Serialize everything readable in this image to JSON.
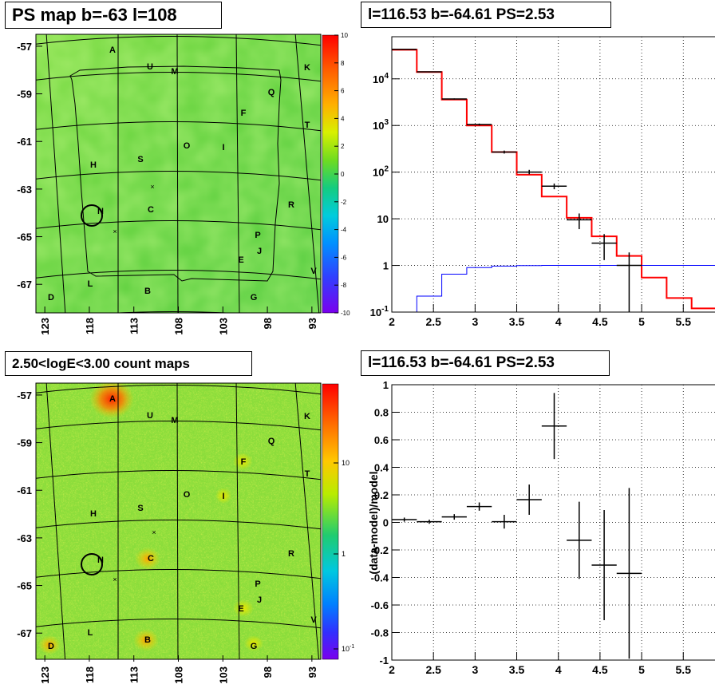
{
  "panels": {
    "ps_map": {
      "title": "PS map b=-63 l=108"
    },
    "spectrum": {
      "title": "l=116.53 b=-64.61 PS=2.53"
    },
    "count_map": {
      "title": "2.50<logE<3.00 count maps"
    },
    "residual": {
      "title": "l=116.53 b=-64.61 PS=2.53"
    }
  },
  "chart_data": [
    {
      "type": "heatmap",
      "name": "ps-map",
      "title": "PS map b=-63 l=108",
      "ylim": [
        -68.2,
        -56.5
      ],
      "xlim": [
        124,
        92
      ],
      "y_ticks": [
        "-57",
        "-59",
        "-61",
        "-63",
        "-65",
        "-67"
      ],
      "x_ticks": [
        "123",
        "118",
        "113",
        "108",
        "103",
        "98",
        "93"
      ],
      "colorbar": {
        "ticks": [
          "10",
          "8",
          "6",
          "4",
          "2",
          "0",
          "-2",
          "-4",
          "-6",
          "-8",
          "-10"
        ],
        "min": -10,
        "max": 10
      },
      "source_labels": [
        "A",
        "U",
        "M",
        "K",
        "Q",
        "F",
        "T",
        "O",
        "I",
        "H",
        "S",
        "R",
        "N",
        "C",
        "P",
        "J",
        "E",
        "V",
        "L",
        "B",
        "D",
        "G"
      ]
    },
    {
      "type": "line",
      "name": "spectrum",
      "title": "l=116.53 b=-64.61 PS=2.53",
      "xlim": [
        2,
        5.9
      ],
      "ylim": [
        0.1,
        80000
      ],
      "log_y": true,
      "x_ticks": [
        "2",
        "2.5",
        "3",
        "3.5",
        "4",
        "4.5",
        "5",
        "5.5"
      ],
      "y_ticks": [
        "10^-1",
        "1",
        "10",
        "10^2",
        "10^3",
        "10^4"
      ],
      "grid": true,
      "series": [
        {
          "color": "#ff0000",
          "edges": [
            2.0,
            2.3,
            2.6,
            2.9,
            3.2,
            3.5,
            3.8,
            4.1,
            4.4,
            4.7,
            5.0,
            5.3,
            5.6,
            5.9
          ],
          "values": [
            42000,
            14000,
            3600,
            1000,
            270,
            88,
            30,
            10.5,
            4.2,
            1.6,
            0.55,
            0.2,
            0.12
          ]
        },
        {
          "color": "#0000ff",
          "edges": [
            2.0,
            2.3,
            2.6,
            2.9,
            3.2,
            3.5,
            3.8,
            4.1,
            4.4,
            4.7,
            5.0,
            5.3,
            5.6,
            5.9
          ],
          "values": [
            0.01,
            0.22,
            0.65,
            0.9,
            0.97,
            0.99,
            1.0,
            1.0,
            1.0,
            1.0,
            1.0,
            1.0,
            1.0
          ]
        }
      ],
      "points": [
        {
          "x": 2.15,
          "xerr": 0.15,
          "y": 43000,
          "ylo": 42000,
          "yhi": 44000
        },
        {
          "x": 2.45,
          "xerr": 0.15,
          "y": 14100,
          "ylo": 13800,
          "yhi": 14400
        },
        {
          "x": 2.75,
          "xerr": 0.15,
          "y": 3700,
          "ylo": 3600,
          "yhi": 3800
        },
        {
          "x": 3.05,
          "xerr": 0.15,
          "y": 1050,
          "ylo": 1000,
          "yhi": 1100
        },
        {
          "x": 3.35,
          "xerr": 0.15,
          "y": 270,
          "ylo": 250,
          "yhi": 290
        },
        {
          "x": 3.65,
          "xerr": 0.15,
          "y": 100,
          "ylo": 90,
          "yhi": 112
        },
        {
          "x": 3.95,
          "xerr": 0.15,
          "y": 50,
          "ylo": 43,
          "yhi": 57
        },
        {
          "x": 4.25,
          "xerr": 0.15,
          "y": 9.5,
          "ylo": 6,
          "yhi": 13
        },
        {
          "x": 4.55,
          "xerr": 0.15,
          "y": 3,
          "ylo": 1.3,
          "yhi": 4.7
        },
        {
          "x": 4.85,
          "xerr": 0.15,
          "y": 1.0,
          "ylo": 0.1,
          "yhi": 1.9
        }
      ]
    },
    {
      "type": "heatmap",
      "name": "count-map",
      "title": "2.50<logE<3.00 count maps",
      "ylim": [
        -68.2,
        -56.5
      ],
      "xlim": [
        124,
        92
      ],
      "y_ticks": [
        "-57",
        "-59",
        "-61",
        "-63",
        "-65",
        "-67"
      ],
      "x_ticks": [
        "123",
        "118",
        "113",
        "108",
        "103",
        "98",
        "93"
      ],
      "colorbar": {
        "ticks": [
          "10",
          "1",
          "10^-1"
        ],
        "log": true
      },
      "source_labels": [
        "A",
        "U",
        "M",
        "K",
        "Q",
        "F",
        "T",
        "O",
        "I",
        "H",
        "S",
        "R",
        "N",
        "C",
        "P",
        "J",
        "E",
        "V",
        "L",
        "B",
        "D",
        "G"
      ]
    },
    {
      "type": "scatter",
      "name": "residual",
      "title": "l=116.53 b=-64.61 PS=2.53",
      "ylabel": "(data-model)/model",
      "xlim": [
        2,
        5.9
      ],
      "ylim": [
        -1,
        1
      ],
      "x_ticks": [
        "2",
        "2.5",
        "3",
        "3.5",
        "4",
        "4.5",
        "5",
        "5.5"
      ],
      "y_ticks": [
        "-1",
        "-0.8",
        "-0.6",
        "-0.4",
        "-0.2",
        "0",
        "0.2",
        "0.4",
        "0.6",
        "0.8",
        "1"
      ],
      "grid": true,
      "points": [
        {
          "x": 2.15,
          "xerr": 0.15,
          "y": 0.02,
          "yerr": 0.015
        },
        {
          "x": 2.45,
          "xerr": 0.15,
          "y": 0.005,
          "yerr": 0.015
        },
        {
          "x": 2.75,
          "xerr": 0.15,
          "y": 0.04,
          "yerr": 0.02
        },
        {
          "x": 3.05,
          "xerr": 0.15,
          "y": 0.115,
          "yerr": 0.03
        },
        {
          "x": 3.35,
          "xerr": 0.15,
          "y": 0.005,
          "yerr": 0.05
        },
        {
          "x": 3.65,
          "xerr": 0.15,
          "y": 0.165,
          "yerr": 0.11
        },
        {
          "x": 3.95,
          "xerr": 0.15,
          "y": 0.7,
          "yerr": 0.24
        },
        {
          "x": 4.25,
          "xerr": 0.15,
          "y": -0.13,
          "yerr": 0.28
        },
        {
          "x": 4.55,
          "xerr": 0.15,
          "y": -0.31,
          "yerr": 0.4
        },
        {
          "x": 4.85,
          "xerr": 0.15,
          "y": -0.37,
          "yerr": 0.62
        }
      ]
    }
  ]
}
